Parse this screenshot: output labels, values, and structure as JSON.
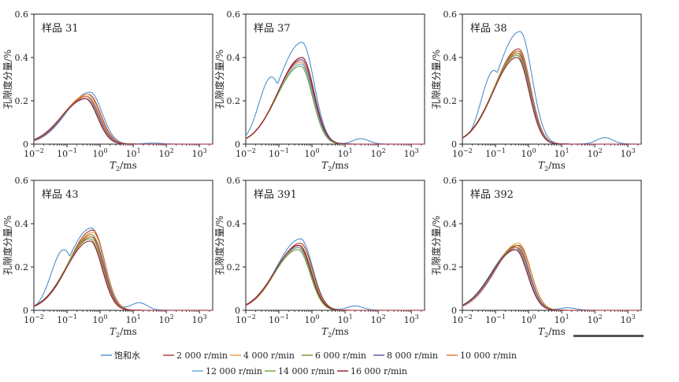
{
  "figure": {
    "scale_bar_color": "#555555"
  },
  "shared": {
    "xlabel_main": "T",
    "xlabel_sub": "2",
    "xlabel_unit": "/ms",
    "ylabel": "孔隙度分量/%",
    "xlim_log10": [
      -2,
      3.4
    ],
    "ylim": [
      0,
      0.6
    ],
    "yticks": [
      "0",
      "0.2",
      "0.4",
      "0.6"
    ],
    "xticks": [
      {
        "base": "10",
        "exp": "−2"
      },
      {
        "base": "10",
        "exp": "−1"
      },
      {
        "base": "10",
        "exp": "0"
      },
      {
        "base": "10",
        "exp": "1"
      },
      {
        "base": "10",
        "exp": "2"
      },
      {
        "base": "10",
        "exp": "3"
      }
    ]
  },
  "legend": [
    {
      "label": "饱和水",
      "color": "#4d8fcf"
    },
    {
      "label": "2 000 r/min",
      "color": "#b5322a"
    },
    {
      "label": "4 000 r/min",
      "color": "#f09a3e"
    },
    {
      "label": "6 000 r/min",
      "color": "#7b8a2a"
    },
    {
      "label": "8 000 r/min",
      "color": "#6a4c9c"
    },
    {
      "label": "10 000 r/min",
      "color": "#e8742a"
    },
    {
      "label": "12 000 r/min",
      "color": "#5aaee0"
    },
    {
      "label": "14 000 r/min",
      "color": "#6aaa3a"
    },
    {
      "label": "16 000 r/min",
      "color": "#9b1b30"
    }
  ],
  "chart_data": [
    {
      "type": "line",
      "title": "样品 31",
      "xlabel": "T2/ms",
      "ylabel": "孔隙度分量/%",
      "x_scale": "log",
      "ylim": [
        0,
        0.6
      ],
      "series_peaks": [
        {
          "name": "饱和水",
          "main_peak_x": 0.5,
          "main_peak_y": 0.24,
          "minor_peak_x": 40,
          "minor_peak_y": 0.005
        },
        {
          "name": "2 000 r/min",
          "main_peak_x": 0.45,
          "main_peak_y": 0.23
        },
        {
          "name": "4 000 r/min",
          "main_peak_x": 0.42,
          "main_peak_y": 0.23
        },
        {
          "name": "6 000 r/min",
          "main_peak_x": 0.4,
          "main_peak_y": 0.22
        },
        {
          "name": "8 000 r/min",
          "main_peak_x": 0.4,
          "main_peak_y": 0.22
        },
        {
          "name": "10 000 r/min",
          "main_peak_x": 0.38,
          "main_peak_y": 0.22
        },
        {
          "name": "12 000 r/min",
          "main_peak_x": 0.38,
          "main_peak_y": 0.21
        },
        {
          "name": "14 000 r/min",
          "main_peak_x": 0.36,
          "main_peak_y": 0.21
        },
        {
          "name": "16 000 r/min",
          "main_peak_x": 0.36,
          "main_peak_y": 0.21
        }
      ]
    },
    {
      "type": "line",
      "title": "样品 37",
      "xlabel": "T2/ms",
      "ylabel": "孔隙度分量/%",
      "x_scale": "log",
      "ylim": [
        0,
        0.6
      ],
      "series_peaks": [
        {
          "name": "饱和水",
          "main_peak_x": 0.5,
          "main_peak_y": 0.47,
          "shoulder_x": 0.06,
          "shoulder_y": 0.31,
          "minor_peak_x": 30,
          "minor_peak_y": 0.025
        },
        {
          "name": "2 000 r/min",
          "main_peak_x": 0.5,
          "main_peak_y": 0.4
        },
        {
          "name": "4 000 r/min",
          "main_peak_x": 0.5,
          "main_peak_y": 0.4
        },
        {
          "name": "6 000 r/min",
          "main_peak_x": 0.48,
          "main_peak_y": 0.39
        },
        {
          "name": "8 000 r/min",
          "main_peak_x": 0.48,
          "main_peak_y": 0.39
        },
        {
          "name": "10 000 r/min",
          "main_peak_x": 0.46,
          "main_peak_y": 0.38
        },
        {
          "name": "12 000 r/min",
          "main_peak_x": 0.46,
          "main_peak_y": 0.37
        },
        {
          "name": "14 000 r/min",
          "main_peak_x": 0.45,
          "main_peak_y": 0.36
        },
        {
          "name": "16 000 r/min",
          "main_peak_x": 0.5,
          "main_peak_y": 0.4
        }
      ]
    },
    {
      "type": "line",
      "title": "样品 38",
      "xlabel": "T2/ms",
      "ylabel": "孔隙度分量/%",
      "x_scale": "log",
      "ylim": [
        0,
        0.6
      ],
      "series_peaks": [
        {
          "name": "饱和水",
          "main_peak_x": 0.55,
          "main_peak_y": 0.52,
          "shoulder_x": 0.09,
          "shoulder_y": 0.34,
          "minor_peak_x": 200,
          "minor_peak_y": 0.03
        },
        {
          "name": "2 000 r/min",
          "main_peak_x": 0.5,
          "main_peak_y": 0.44
        },
        {
          "name": "4 000 r/min",
          "main_peak_x": 0.5,
          "main_peak_y": 0.43
        },
        {
          "name": "6 000 r/min",
          "main_peak_x": 0.48,
          "main_peak_y": 0.43
        },
        {
          "name": "8 000 r/min",
          "main_peak_x": 0.48,
          "main_peak_y": 0.42
        },
        {
          "name": "10 000 r/min",
          "main_peak_x": 0.46,
          "main_peak_y": 0.42
        },
        {
          "name": "12 000 r/min",
          "main_peak_x": 0.46,
          "main_peak_y": 0.41
        },
        {
          "name": "14 000 r/min",
          "main_peak_x": 0.45,
          "main_peak_y": 0.41
        },
        {
          "name": "16 000 r/min",
          "main_peak_x": 0.45,
          "main_peak_y": 0.4
        }
      ]
    },
    {
      "type": "line",
      "title": "样品 43",
      "xlabel": "T2/ms",
      "ylabel": "孔隙度分量/%",
      "x_scale": "log",
      "ylim": [
        0,
        0.6
      ],
      "series_peaks": [
        {
          "name": "饱和水",
          "main_peak_x": 0.55,
          "main_peak_y": 0.38,
          "shoulder_x": 0.08,
          "shoulder_y": 0.28,
          "minor_peak_x": 15,
          "minor_peak_y": 0.035
        },
        {
          "name": "2 000 r/min",
          "main_peak_x": 0.6,
          "main_peak_y": 0.37
        },
        {
          "name": "4 000 r/min",
          "main_peak_x": 0.6,
          "main_peak_y": 0.36
        },
        {
          "name": "6 000 r/min",
          "main_peak_x": 0.55,
          "main_peak_y": 0.35
        },
        {
          "name": "8 000 r/min",
          "main_peak_x": 0.55,
          "main_peak_y": 0.34
        },
        {
          "name": "10 000 r/min",
          "main_peak_x": 0.52,
          "main_peak_y": 0.34
        },
        {
          "name": "12 000 r/min",
          "main_peak_x": 0.5,
          "main_peak_y": 0.33
        },
        {
          "name": "14 000 r/min",
          "main_peak_x": 0.5,
          "main_peak_y": 0.33
        },
        {
          "name": "16 000 r/min",
          "main_peak_x": 0.5,
          "main_peak_y": 0.32
        }
      ]
    },
    {
      "type": "line",
      "title": "样品 391",
      "xlabel": "T2/ms",
      "ylabel": "孔隙度分量/%",
      "x_scale": "log",
      "ylim": [
        0,
        0.6
      ],
      "series_peaks": [
        {
          "name": "饱和水",
          "main_peak_x": 0.45,
          "main_peak_y": 0.33,
          "minor_peak_x": 20,
          "minor_peak_y": 0.02
        },
        {
          "name": "2 000 r/min",
          "main_peak_x": 0.45,
          "main_peak_y": 0.31
        },
        {
          "name": "4 000 r/min",
          "main_peak_x": 0.42,
          "main_peak_y": 0.3
        },
        {
          "name": "6 000 r/min",
          "main_peak_x": 0.42,
          "main_peak_y": 0.3
        },
        {
          "name": "8 000 r/min",
          "main_peak_x": 0.4,
          "main_peak_y": 0.29
        },
        {
          "name": "10 000 r/min",
          "main_peak_x": 0.4,
          "main_peak_y": 0.29
        },
        {
          "name": "12 000 r/min",
          "main_peak_x": 0.38,
          "main_peak_y": 0.29
        },
        {
          "name": "14 000 r/min",
          "main_peak_x": 0.38,
          "main_peak_y": 0.28
        },
        {
          "name": "16 000 r/min",
          "main_peak_x": 0.4,
          "main_peak_y": 0.3
        }
      ]
    },
    {
      "type": "line",
      "title": "样品 392",
      "xlabel": "T2/ms",
      "ylabel": "孔隙度分量/%",
      "x_scale": "log",
      "ylim": [
        0,
        0.6
      ],
      "series_peaks": [
        {
          "name": "饱和水",
          "main_peak_x": 0.4,
          "main_peak_y": 0.29,
          "minor_peak_x": 15,
          "minor_peak_y": 0.012
        },
        {
          "name": "2 000 r/min",
          "main_peak_x": 0.5,
          "main_peak_y": 0.3
        },
        {
          "name": "4 000 r/min",
          "main_peak_x": 0.5,
          "main_peak_y": 0.31
        },
        {
          "name": "6 000 r/min",
          "main_peak_x": 0.45,
          "main_peak_y": 0.3
        },
        {
          "name": "8 000 r/min",
          "main_peak_x": 0.45,
          "main_peak_y": 0.29
        },
        {
          "name": "10 000 r/min",
          "main_peak_x": 0.42,
          "main_peak_y": 0.29
        },
        {
          "name": "12 000 r/min",
          "main_peak_x": 0.42,
          "main_peak_y": 0.28
        },
        {
          "name": "14 000 r/min",
          "main_peak_x": 0.4,
          "main_peak_y": 0.28
        },
        {
          "name": "16 000 r/min",
          "main_peak_x": 0.4,
          "main_peak_y": 0.28
        }
      ]
    }
  ]
}
